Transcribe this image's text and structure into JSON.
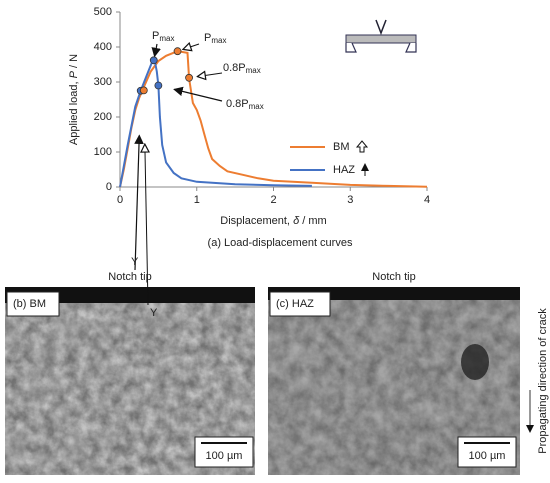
{
  "chart_data": {
    "type": "line",
    "xlabel": [
      "Displacement, ",
      "δ",
      " / mm"
    ],
    "ylabel": [
      "Applied load, ",
      "P",
      " / N"
    ],
    "xlim": [
      0,
      4
    ],
    "xticks": [
      0,
      1,
      2,
      3,
      4
    ],
    "ylim": [
      0,
      500
    ],
    "yticks": [
      0,
      100,
      200,
      300,
      400,
      500
    ],
    "legend": "right",
    "series": [
      {
        "name": "BM",
        "color": "#ed7d31",
        "x": [
          0,
          0.05,
          0.1,
          0.15,
          0.2,
          0.25,
          0.3,
          0.4,
          0.5,
          0.6,
          0.75,
          0.88,
          0.9,
          0.95,
          1.0,
          1.05,
          1.1,
          1.15,
          1.2,
          1.3,
          1.4,
          1.6,
          1.8,
          2.0,
          2.5,
          3.0,
          3.5,
          4.0
        ],
        "values": [
          0,
          50,
          110,
          170,
          220,
          255,
          280,
          330,
          360,
          375,
          388,
          383,
          310,
          240,
          220,
          190,
          150,
          110,
          80,
          60,
          45,
          35,
          25,
          18,
          12,
          6,
          3,
          1
        ]
      },
      {
        "name": "HAZ",
        "color": "#4472c4",
        "x": [
          0,
          0.1,
          0.2,
          0.27,
          0.35,
          0.42,
          0.45,
          0.48,
          0.5,
          0.52,
          0.55,
          0.6,
          0.7,
          0.8,
          1.0,
          1.5,
          2.0,
          2.5
        ],
        "values": [
          0,
          120,
          230,
          275,
          320,
          358,
          365,
          330,
          290,
          200,
          120,
          70,
          40,
          25,
          15,
          8,
          5,
          3
        ]
      }
    ],
    "annotations": [
      {
        "label": "Y",
        "series": 1,
        "x": 0.27,
        "y": 275
      },
      {
        "label": "Y",
        "series": 0,
        "x": 0.31,
        "y": 276
      },
      {
        "label": "P",
        "sub": "max",
        "series": 1,
        "x": 0.44,
        "y": 362
      },
      {
        "label": "P",
        "sub": "max",
        "series": 0,
        "x": 0.75,
        "y": 388
      },
      {
        "label": "0.8P",
        "sub": "max",
        "series": 0,
        "x": 0.9,
        "y": 312
      },
      {
        "label": "0.8P",
        "sub": "max",
        "series": 1,
        "x": 0.5,
        "y": 290
      }
    ],
    "caption": "(a) Load-displacement curves"
  },
  "images": [
    {
      "header": "Notch tip",
      "label": "(b) BM",
      "scale": "100 µm"
    },
    {
      "header": "Notch tip",
      "label": "(c) HAZ",
      "scale": "100 µm"
    }
  ],
  "direction": "Propagating direction of crack"
}
